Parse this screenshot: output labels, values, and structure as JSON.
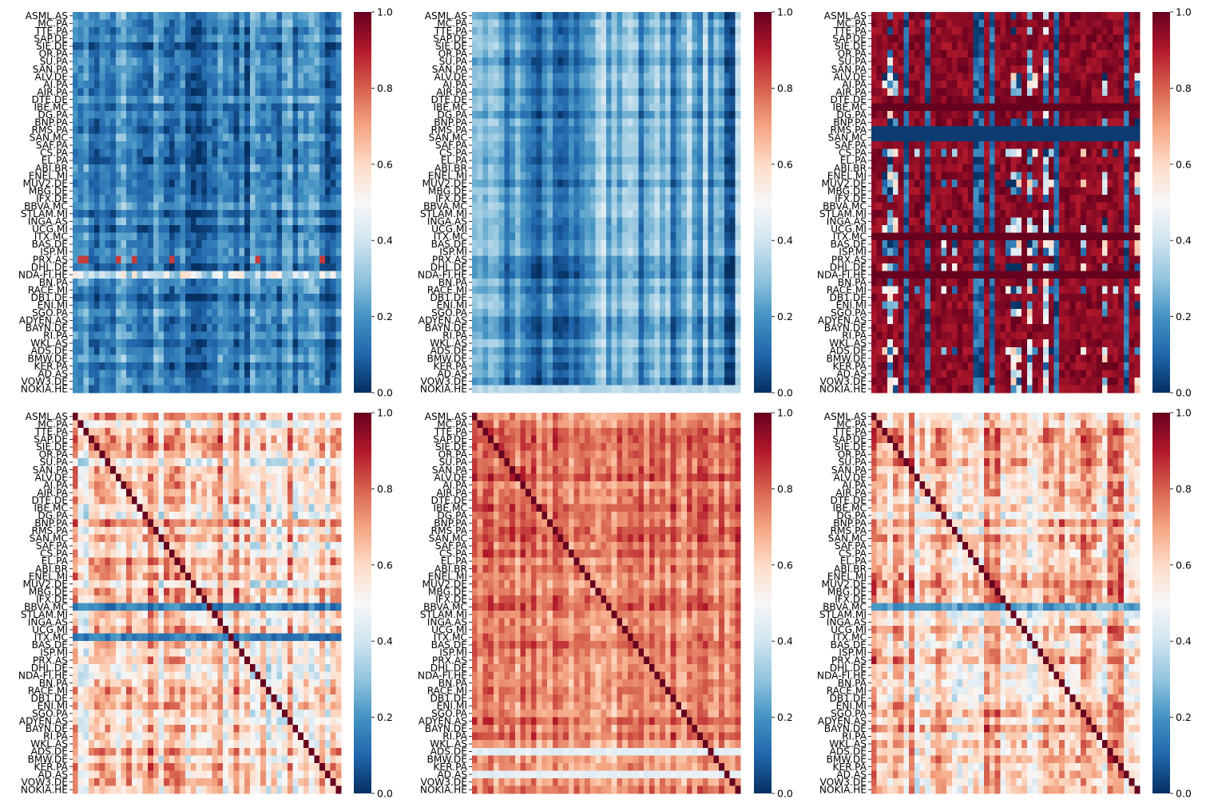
{
  "figure": {
    "colormap": "RdBu_r",
    "colors": [
      "#053061",
      "#2166ac",
      "#4393c3",
      "#92c5de",
      "#d1e5f0",
      "#f7f7f7",
      "#fddbc7",
      "#f4a582",
      "#d6604d",
      "#b2182b",
      "#67001f"
    ],
    "vmin": 0.0,
    "vmax": 1.0
  },
  "chart_data": [
    {
      "type": "heatmap",
      "panel": "top-left",
      "row_labels": [
        "ASML.AS",
        "MC.PA",
        "TTE.PA",
        "SAP.DE",
        "SIE.DE",
        "OR.PA",
        "SU.PA",
        "SAN.PA",
        "ALV.DE",
        "AI.PA",
        "AIR.PA",
        "DTE.DE",
        "IBE.MC",
        "DG.PA",
        "BNP.PA",
        "RMS.PA",
        "SAN.MC",
        "SAF.PA",
        "CS.PA",
        "EL.PA",
        "ABI.BR",
        "ENEL.MI",
        "MUV2.DE",
        "MBG.DE",
        "IFX.DE",
        "BBVA.MC",
        "STLAM.MI",
        "INGA.AS",
        "UCG.MI",
        "ITX.MC",
        "BAS.DE",
        "ISP.MI",
        "PRX.AS",
        "DHL.DE",
        "NDA-FI.HE",
        "BN.PA",
        "RACE.MI",
        "DB1.DE",
        "ENI.MI",
        "SGO.PA",
        "ADYEN.AS",
        "BAYN.DE",
        "RI.PA",
        "WKL.AS",
        "ADS.DE",
        "BMW.DE",
        "KER.PA",
        "AD.AS",
        "VOW3.DE",
        "NOKIA.HE"
      ],
      "colorbar": {
        "ticks": [
          "0.0",
          "0.2",
          "0.4",
          "0.6",
          "0.8",
          "1.0"
        ]
      },
      "typical_value": 0.18,
      "description_values": {
        "background_range": [
          0.0,
          0.35
        ],
        "highlight_row": "NDA-FI.HE",
        "highlight_row_level": 0.5
      }
    },
    {
      "type": "heatmap",
      "panel": "top-center",
      "row_labels": [
        "ASML.AS",
        "MC.PA",
        "TTE.PA",
        "SAP.DE",
        "SIE.DE",
        "OR.PA",
        "SU.PA",
        "SAN.PA",
        "ALV.DE",
        "AI.PA",
        "AIR.PA",
        "DTE.DE",
        "IBE.MC",
        "DG.PA",
        "BNP.PA",
        "RMS.PA",
        "SAN.MC",
        "SAF.PA",
        "CS.PA",
        "EL.PA",
        "ABI.BR",
        "ENEL.MI",
        "MUV2.DE",
        "MBG.DE",
        "IFX.DE",
        "BBVA.MC",
        "STLAM.MI",
        "INGA.AS",
        "UCG.MI",
        "ITX.MC",
        "BAS.DE",
        "ISP.MI",
        "PRX.AS",
        "DHL.DE",
        "NDA-FI.HE",
        "BN.PA",
        "RACE.MI",
        "DB1.DE",
        "ENI.MI",
        "SGO.PA",
        "ADYEN.AS",
        "BAYN.DE",
        "RI.PA",
        "WKL.AS",
        "ADS.DE",
        "BMW.DE",
        "KER.PA",
        "AD.AS",
        "VOW3.DE",
        "NOKIA.HE"
      ],
      "colorbar": {
        "ticks": [
          "0.0",
          "0.2",
          "0.4",
          "0.6",
          "0.8",
          "1.0"
        ]
      },
      "typical_value": 0.2,
      "description_values": {
        "background_range": [
          0.05,
          0.4
        ],
        "last_row": "NOKIA.HE",
        "last_row_level": 0.35
      }
    },
    {
      "type": "heatmap",
      "panel": "top-right",
      "row_labels": [
        "ASML.AS",
        "MC.PA",
        "TTE.PA",
        "SAP.DE",
        "SIE.DE",
        "OR.PA",
        "SU.PA",
        "SAN.PA",
        "ALV.DE",
        "AI.PA",
        "AIR.PA",
        "DTE.DE",
        "IBE.MC",
        "DG.PA",
        "BNP.PA",
        "RMS.PA",
        "SAN.MC",
        "SAF.PA",
        "CS.PA",
        "EL.PA",
        "ABI.BR",
        "ENEL.MI",
        "MUV2.DE",
        "MBG.DE",
        "IFX.DE",
        "BBVA.MC",
        "STLAM.MI",
        "INGA.AS",
        "UCG.MI",
        "ITX.MC",
        "BAS.DE",
        "ISP.MI",
        "PRX.AS",
        "DHL.DE",
        "NDA-FI.HE",
        "BN.PA",
        "RACE.MI",
        "DB1.DE",
        "ENI.MI",
        "SGO.PA",
        "ADYEN.AS",
        "BAYN.DE",
        "RI.PA",
        "WKL.AS",
        "ADS.DE",
        "BMW.DE",
        "KER.PA",
        "AD.AS",
        "VOW3.DE",
        "NOKIA.HE"
      ],
      "colorbar": {
        "ticks": [
          "0.0",
          "0.2",
          "0.4",
          "0.6",
          "0.8",
          "1.0"
        ]
      },
      "typical_value": 0.9,
      "description_values": {
        "background_range": [
          0.0,
          1.0
        ],
        "dark_rows": [
          "RMS.PA",
          "SAN.MC"
        ],
        "dark_level": 0.0,
        "saturated_rows": [
          "IBE.MC",
          "ITX.MC",
          "NDA-FI.HE"
        ],
        "saturated_level": 1.0
      }
    },
    {
      "type": "heatmap",
      "panel": "bottom-left",
      "row_labels": [
        "ASML.AS",
        "MC.PA",
        "TTE.PA",
        "SAP.DE",
        "SIE.DE",
        "OR.PA",
        "SU.PA",
        "SAN.PA",
        "ALV.DE",
        "AI.PA",
        "AIR.PA",
        "DTE.DE",
        "IBE.MC",
        "DG.PA",
        "BNP.PA",
        "RMS.PA",
        "SAN.MC",
        "SAF.PA",
        "CS.PA",
        "EL.PA",
        "ABI.BR",
        "ENEL.MI",
        "MUV2.DE",
        "MBG.DE",
        "IFX.DE",
        "BBVA.MC",
        "STLAM.MI",
        "INGA.AS",
        "UCG.MI",
        "ITX.MC",
        "BAS.DE",
        "ISP.MI",
        "PRX.AS",
        "DHL.DE",
        "NDA-FI.HE",
        "BN.PA",
        "RACE.MI",
        "DB1.DE",
        "ENI.MI",
        "SGO.PA",
        "ADYEN.AS",
        "BAYN.DE",
        "RI.PA",
        "WKL.AS",
        "ADS.DE",
        "BMW.DE",
        "KER.PA",
        "AD.AS",
        "VOW3.DE",
        "NOKIA.HE"
      ],
      "colorbar": {
        "ticks": [
          "0.0",
          "0.2",
          "0.4",
          "0.6",
          "0.8",
          "1.0"
        ]
      },
      "typical_value": 0.62,
      "diagonal": 1.0,
      "description_values": {
        "background_range": [
          0.1,
          0.85
        ],
        "low_rows": [
          "BBVA.MC",
          "ITX.MC"
        ],
        "low_level": 0.15
      }
    },
    {
      "type": "heatmap",
      "panel": "bottom-center",
      "row_labels": [
        "ASML.AS",
        "MC.PA",
        "TTE.PA",
        "SAP.DE",
        "SIE.DE",
        "OR.PA",
        "SU.PA",
        "SAN.PA",
        "ALV.DE",
        "AI.PA",
        "AIR.PA",
        "DTE.DE",
        "IBE.MC",
        "DG.PA",
        "BNP.PA",
        "RMS.PA",
        "SAN.MC",
        "SAF.PA",
        "CS.PA",
        "EL.PA",
        "ABI.BR",
        "ENEL.MI",
        "MUV2.DE",
        "MBG.DE",
        "IFX.DE",
        "BBVA.MC",
        "STLAM.MI",
        "INGA.AS",
        "UCG.MI",
        "ITX.MC",
        "BAS.DE",
        "ISP.MI",
        "PRX.AS",
        "DHL.DE",
        "NDA-FI.HE",
        "BN.PA",
        "RACE.MI",
        "DB1.DE",
        "ENI.MI",
        "SGO.PA",
        "ADYEN.AS",
        "BAYN.DE",
        "RI.PA",
        "WKL.AS",
        "ADS.DE",
        "BMW.DE",
        "KER.PA",
        "AD.AS",
        "VOW3.DE",
        "NOKIA.HE"
      ],
      "colorbar": {
        "ticks": [
          "0.0",
          "0.2",
          "0.4",
          "0.6",
          "0.8",
          "1.0"
        ]
      },
      "typical_value": 0.78,
      "diagonal": 1.0,
      "description_values": {
        "background_range": [
          0.45,
          0.9
        ],
        "light_rows": [
          "ADS.DE",
          "AD.AS"
        ],
        "light_level": 0.45
      }
    },
    {
      "type": "heatmap",
      "panel": "bottom-right",
      "row_labels": [
        "ASML.AS",
        "MC.PA",
        "TTE.PA",
        "SAP.DE",
        "SIE.DE",
        "OR.PA",
        "SU.PA",
        "SAN.PA",
        "ALV.DE",
        "AI.PA",
        "AIR.PA",
        "DTE.DE",
        "IBE.MC",
        "DG.PA",
        "BNP.PA",
        "RMS.PA",
        "SAN.MC",
        "SAF.PA",
        "CS.PA",
        "EL.PA",
        "ABI.BR",
        "ENEL.MI",
        "MUV2.DE",
        "MBG.DE",
        "IFX.DE",
        "BBVA.MC",
        "STLAM.MI",
        "INGA.AS",
        "UCG.MI",
        "ITX.MC",
        "BAS.DE",
        "ISP.MI",
        "PRX.AS",
        "DHL.DE",
        "NDA-FI.HE",
        "BN.PA",
        "RACE.MI",
        "DB1.DE",
        "ENI.MI",
        "SGO.PA",
        "ADYEN.AS",
        "BAYN.DE",
        "RI.PA",
        "WKL.AS",
        "ADS.DE",
        "BMW.DE",
        "KER.PA",
        "AD.AS",
        "VOW3.DE",
        "NOKIA.HE"
      ],
      "colorbar": {
        "ticks": [
          "0.0",
          "0.2",
          "0.4",
          "0.6",
          "0.8",
          "1.0"
        ]
      },
      "typical_value": 0.63,
      "diagonal": 1.0,
      "description_values": {
        "background_range": [
          0.15,
          0.85
        ],
        "low_rows": [
          "BBVA.MC"
        ],
        "low_level": 0.2
      }
    }
  ]
}
